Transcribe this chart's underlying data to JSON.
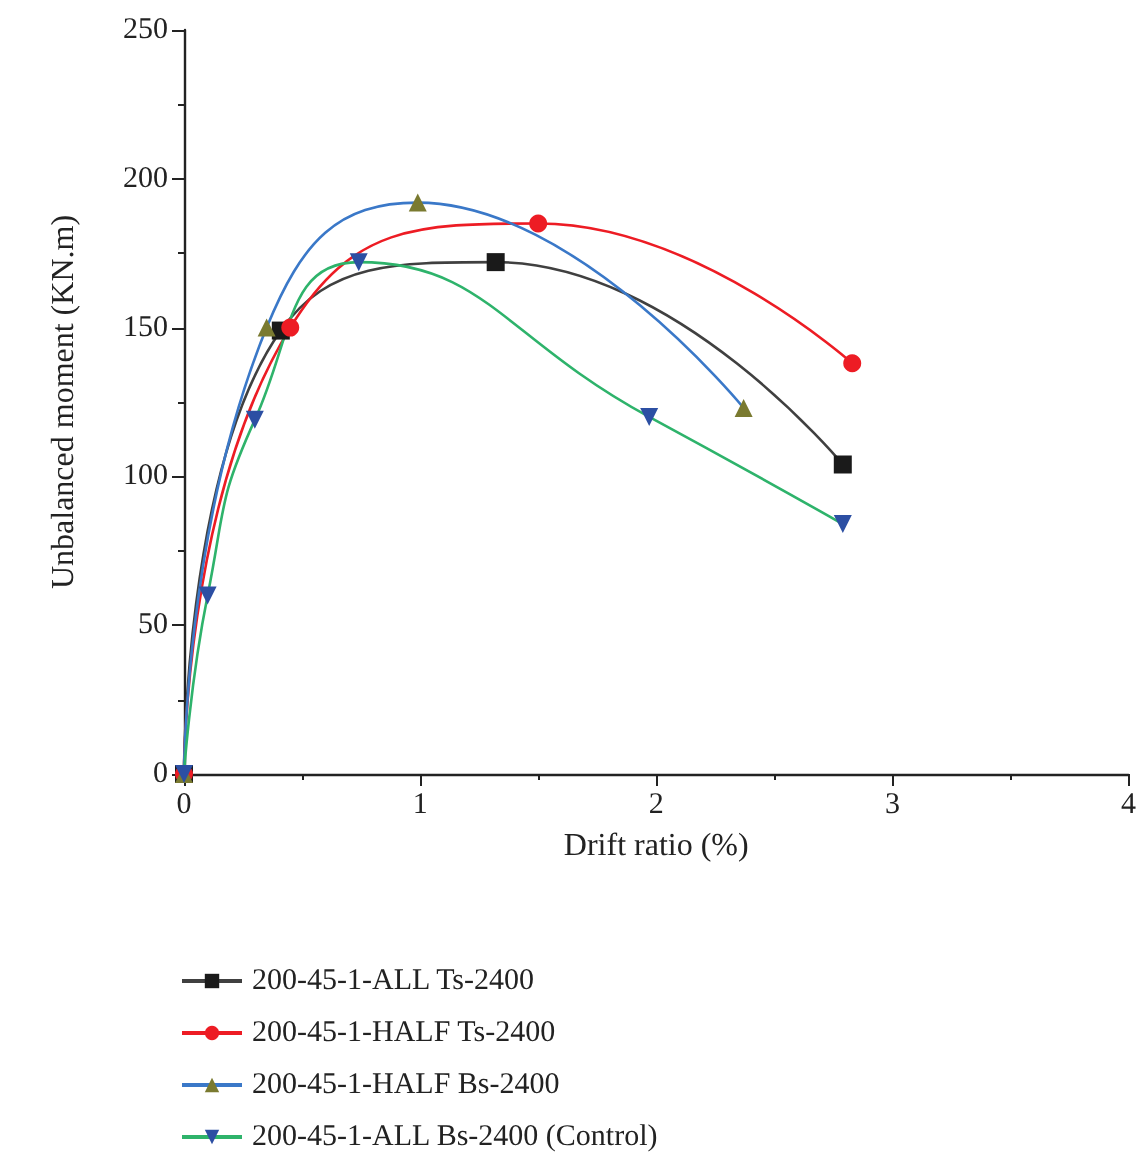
{
  "chart_data": {
    "type": "line",
    "xlabel": "Drift ratio (%)",
    "ylabel": "Unbalanced moment (KN.m)",
    "xlim": [
      0,
      4
    ],
    "xticks": [
      0,
      1,
      2,
      3,
      4
    ],
    "ylim": [
      0,
      250
    ],
    "yticks": [
      0,
      50,
      100,
      150,
      200,
      250
    ],
    "grid": false,
    "legend": "bottom",
    "line_style": "solid",
    "series": [
      {
        "name": "200-45-1-ALL Ts-2400",
        "color": "#404040",
        "marker": "square",
        "colors": [
          "#1a1a1a",
          "#1a1a1a",
          "#1a1a1a",
          "#1a1a1a"
        ],
        "x": [
          0,
          0.41,
          1.32,
          2.79
        ],
        "values": [
          0,
          149,
          172,
          104
        ]
      },
      {
        "name": "200-45-1-HALF Ts-2400",
        "color": "#ed1c24",
        "marker": "circle",
        "colors": [
          "#ed1c24",
          "#ed1c24",
          "#ed1c24",
          "#ed1c24"
        ],
        "x": [
          0,
          0.45,
          1.5,
          2.83
        ],
        "values": [
          0,
          150,
          185,
          138
        ]
      },
      {
        "name": "200-45-1-HALF Bs-2400",
        "color": "#3a78c8",
        "marker": "triangle",
        "colors": [
          "#7a7a30",
          "#7a7a30",
          "#7a7a30",
          "#7a7a30"
        ],
        "x": [
          0,
          0.35,
          0.99,
          2.37
        ],
        "values": [
          0,
          150,
          192,
          123
        ]
      },
      {
        "name": "200-45-1-ALL Bs-2400 (Control)",
        "color": "#2eb36b",
        "marker": "triangle-down",
        "colors": [
          "#2c4fa3",
          "#2c4fa3",
          "#2c4fa3",
          "#2c4fa3",
          "#2c4fa3",
          "#2c4fa3"
        ],
        "x": [
          0,
          0.1,
          0.3,
          0.74,
          1.97,
          2.79
        ],
        "values": [
          0,
          60,
          119,
          172,
          120,
          84
        ]
      }
    ]
  }
}
